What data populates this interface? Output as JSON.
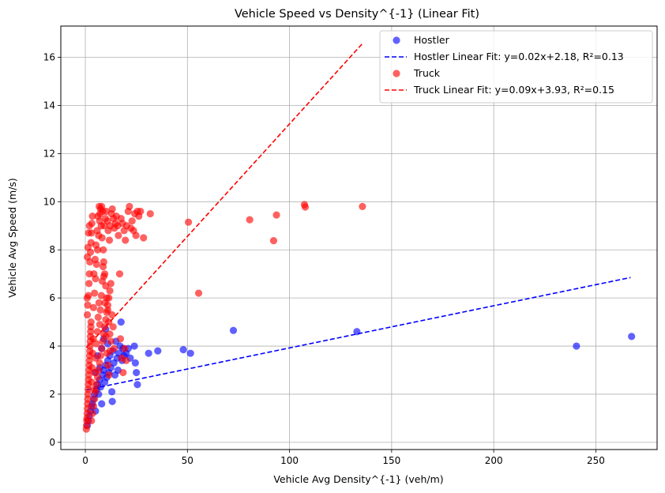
{
  "chart_data": {
    "type": "scatter",
    "title": "Vehicle Speed vs Density^{-1} (Linear Fit)",
    "xlabel": "Vehicle Avg Density^{-1} (veh/m)",
    "ylabel": "Vehicle Avg Speed (m/s)",
    "xlim": [
      -12,
      280
    ],
    "ylim": [
      -0.3,
      17.3
    ],
    "xticks": [
      0,
      50,
      100,
      150,
      200,
      250
    ],
    "yticks": [
      0,
      2,
      4,
      6,
      8,
      10,
      12,
      14,
      16
    ],
    "grid": true,
    "legend_position": "top-right",
    "series": [
      {
        "name": "Hostler",
        "kind": "scatter",
        "color": "#0000ff",
        "points": [
          [
            1.0,
            0.7
          ],
          [
            1.5,
            0.9
          ],
          [
            2.0,
            1.1
          ],
          [
            2.5,
            1.3
          ],
          [
            3.0,
            1.5
          ],
          [
            3.5,
            1.6
          ],
          [
            4.0,
            1.8
          ],
          [
            4.5,
            2.0
          ],
          [
            5.0,
            1.3
          ],
          [
            5.5,
            2.2
          ],
          [
            6.0,
            2.4
          ],
          [
            6.5,
            2.0
          ],
          [
            7.0,
            2.6
          ],
          [
            7.5,
            2.3
          ],
          [
            8.0,
            1.6
          ],
          [
            8.5,
            2.8
          ],
          [
            9.0,
            3.0
          ],
          [
            9.5,
            2.5
          ],
          [
            10.0,
            3.2
          ],
          [
            10.5,
            2.7
          ],
          [
            11.0,
            3.4
          ],
          [
            11.5,
            2.9
          ],
          [
            12.0,
            3.6
          ],
          [
            12.5,
            3.1
          ],
          [
            13.0,
            2.1
          ],
          [
            13.5,
            3.8
          ],
          [
            14.0,
            3.3
          ],
          [
            14.5,
            2.8
          ],
          [
            15.0,
            4.2
          ],
          [
            15.5,
            3.5
          ],
          [
            16.0,
            3.0
          ],
          [
            16.5,
            3.7
          ],
          [
            17.0,
            4.0
          ],
          [
            17.5,
            5.0
          ],
          [
            18.0,
            3.4
          ],
          [
            18.5,
            3.9
          ],
          [
            19.0,
            3.6
          ],
          [
            20.0,
            3.7
          ],
          [
            21.0,
            3.9
          ],
          [
            22.0,
            3.5
          ],
          [
            24.0,
            4.0
          ],
          [
            24.5,
            3.3
          ],
          [
            25.0,
            2.9
          ],
          [
            25.5,
            2.4
          ],
          [
            13.2,
            1.7
          ],
          [
            31.0,
            3.7
          ],
          [
            35.5,
            3.8
          ],
          [
            48.0,
            3.85
          ],
          [
            51.5,
            3.7
          ],
          [
            72.5,
            4.65
          ],
          [
            133.0,
            4.6
          ],
          [
            240.5,
            4.0
          ],
          [
            267.5,
            4.4
          ],
          [
            5.0,
            2.9
          ],
          [
            6.0,
            3.6
          ],
          [
            7.0,
            3.1
          ],
          [
            8.0,
            3.9
          ],
          [
            9.0,
            4.3
          ],
          [
            10.0,
            4.7
          ],
          [
            11.0,
            4.1
          ]
        ]
      },
      {
        "name": "Hostler Linear Fit: y=0.02x+2.18, R²=0.13",
        "kind": "line",
        "style": "dashed",
        "color": "#0000ff",
        "points": [
          [
            0.5,
            2.18
          ],
          [
            267.0,
            6.85
          ]
        ]
      },
      {
        "name": "Truck",
        "kind": "scatter",
        "color": "#ff0000",
        "points": [
          [
            0.5,
            0.55
          ],
          [
            0.6,
            0.7
          ],
          [
            0.7,
            0.9
          ],
          [
            0.8,
            1.0
          ],
          [
            0.9,
            1.2
          ],
          [
            1.0,
            1.4
          ],
          [
            1.1,
            1.6
          ],
          [
            1.2,
            1.8
          ],
          [
            1.3,
            2.0
          ],
          [
            1.4,
            2.2
          ],
          [
            1.5,
            2.4
          ],
          [
            1.6,
            2.6
          ],
          [
            1.7,
            2.8
          ],
          [
            1.8,
            3.0
          ],
          [
            1.9,
            3.2
          ],
          [
            2.0,
            3.4
          ],
          [
            2.1,
            3.6
          ],
          [
            2.2,
            3.8
          ],
          [
            2.3,
            4.0
          ],
          [
            2.4,
            4.2
          ],
          [
            2.5,
            4.4
          ],
          [
            2.6,
            4.6
          ],
          [
            2.7,
            4.8
          ],
          [
            2.8,
            5.0
          ],
          [
            1.0,
            5.3
          ],
          [
            1.2,
            5.7
          ],
          [
            1.5,
            6.1
          ],
          [
            1.8,
            6.6
          ],
          [
            2.0,
            7.0
          ],
          [
            2.2,
            7.5
          ],
          [
            2.5,
            7.9
          ],
          [
            2.8,
            8.3
          ],
          [
            3.0,
            8.7
          ],
          [
            3.2,
            9.1
          ],
          [
            3.5,
            9.4
          ],
          [
            1.0,
            7.7
          ],
          [
            1.3,
            8.1
          ],
          [
            1.6,
            8.7
          ],
          [
            2.0,
            9.0
          ],
          [
            0.9,
            6.0
          ],
          [
            3.0,
            0.9
          ],
          [
            3.5,
            1.2
          ],
          [
            4.0,
            1.5
          ],
          [
            4.5,
            1.8
          ],
          [
            5.0,
            2.1
          ],
          [
            5.5,
            2.4
          ],
          [
            6.0,
            2.7
          ],
          [
            6.5,
            3.0
          ],
          [
            7.0,
            3.3
          ],
          [
            7.5,
            3.6
          ],
          [
            8.0,
            3.9
          ],
          [
            8.5,
            4.2
          ],
          [
            9.0,
            4.5
          ],
          [
            9.5,
            4.8
          ],
          [
            10.0,
            5.1
          ],
          [
            10.5,
            5.4
          ],
          [
            11.0,
            5.7
          ],
          [
            11.5,
            6.0
          ],
          [
            12.0,
            6.3
          ],
          [
            12.5,
            6.6
          ],
          [
            4.0,
            5.6
          ],
          [
            4.5,
            6.2
          ],
          [
            5.0,
            6.8
          ],
          [
            5.5,
            7.4
          ],
          [
            6.0,
            8.0
          ],
          [
            6.5,
            8.6
          ],
          [
            7.0,
            9.2
          ],
          [
            7.5,
            9.7
          ],
          [
            8.0,
            9.8
          ],
          [
            8.5,
            9.6
          ],
          [
            4.2,
            7.0
          ],
          [
            4.8,
            7.6
          ],
          [
            5.2,
            8.2
          ],
          [
            5.8,
            8.8
          ],
          [
            6.2,
            9.4
          ],
          [
            6.8,
            9.8
          ],
          [
            7.2,
            9.5
          ],
          [
            7.8,
            9.0
          ],
          [
            8.2,
            8.5
          ],
          [
            8.8,
            8.0
          ],
          [
            9.0,
            7.5
          ],
          [
            9.5,
            7.0
          ],
          [
            10.0,
            6.5
          ],
          [
            10.5,
            6.0
          ],
          [
            11.0,
            5.5
          ],
          [
            11.5,
            5.0
          ],
          [
            12.0,
            4.5
          ],
          [
            9.2,
            9.0
          ],
          [
            9.8,
            9.3
          ],
          [
            10.2,
            9.6
          ],
          [
            10.8,
            9.2
          ],
          [
            11.2,
            8.8
          ],
          [
            11.8,
            8.4
          ],
          [
            12.2,
            9.0
          ],
          [
            12.8,
            9.5
          ],
          [
            13.2,
            9.7
          ],
          [
            13.8,
            9.3
          ],
          [
            14.2,
            8.9
          ],
          [
            14.8,
            9.1
          ],
          [
            15.2,
            9.4
          ],
          [
            15.8,
            9.0
          ],
          [
            16.2,
            8.6
          ],
          [
            16.8,
            7.0
          ],
          [
            17.5,
            9.3
          ],
          [
            18.2,
            9.1
          ],
          [
            19.0,
            8.8
          ],
          [
            19.6,
            8.4
          ],
          [
            20.3,
            9.0
          ],
          [
            21.0,
            9.6
          ],
          [
            21.6,
            9.8
          ],
          [
            22.3,
            8.9
          ],
          [
            22.9,
            9.2
          ],
          [
            23.6,
            8.8
          ],
          [
            24.2,
            9.5
          ],
          [
            24.8,
            8.6
          ],
          [
            25.5,
            9.6
          ],
          [
            26.2,
            9.4
          ],
          [
            27.0,
            9.6
          ],
          [
            28.5,
            8.5
          ],
          [
            31.8,
            9.5
          ],
          [
            50.5,
            9.15
          ],
          [
            55.5,
            6.2
          ],
          [
            80.5,
            9.25
          ],
          [
            92.2,
            8.38
          ],
          [
            93.6,
            9.45
          ],
          [
            107.3,
            9.88
          ],
          [
            107.7,
            9.78
          ],
          [
            135.7,
            9.8
          ],
          [
            17.2,
            4.3
          ],
          [
            17.8,
            3.5
          ],
          [
            18.5,
            2.9
          ],
          [
            19.2,
            3.9
          ],
          [
            20.0,
            3.4
          ],
          [
            3.1,
            2.5
          ],
          [
            3.3,
            3.1
          ],
          [
            3.6,
            3.7
          ],
          [
            3.9,
            4.3
          ],
          [
            4.3,
            2.2
          ],
          [
            4.6,
            2.9
          ],
          [
            5.1,
            3.5
          ],
          [
            5.4,
            4.1
          ],
          [
            5.9,
            4.6
          ],
          [
            6.3,
            5.2
          ],
          [
            6.7,
            5.8
          ],
          [
            7.1,
            4.9
          ],
          [
            7.4,
            5.5
          ],
          [
            7.9,
            6.1
          ],
          [
            8.3,
            6.7
          ],
          [
            8.7,
            7.3
          ],
          [
            9.1,
            6.9
          ],
          [
            9.6,
            5.8
          ],
          [
            10.1,
            4.4
          ],
          [
            10.6,
            3.7
          ],
          [
            11.1,
            3.2
          ],
          [
            11.6,
            2.8
          ],
          [
            12.1,
            3.8
          ],
          [
            12.6,
            4.2
          ],
          [
            13.1,
            5.3
          ],
          [
            13.6,
            4.8
          ],
          [
            14.1,
            3.9
          ]
        ]
      },
      {
        "name": "Truck Linear Fit: y=0.09x+3.93, R²=0.15",
        "kind": "line",
        "style": "dashed",
        "color": "#ff0000",
        "points": [
          [
            0.5,
            3.93
          ],
          [
            136.0,
            16.6
          ]
        ]
      }
    ]
  }
}
